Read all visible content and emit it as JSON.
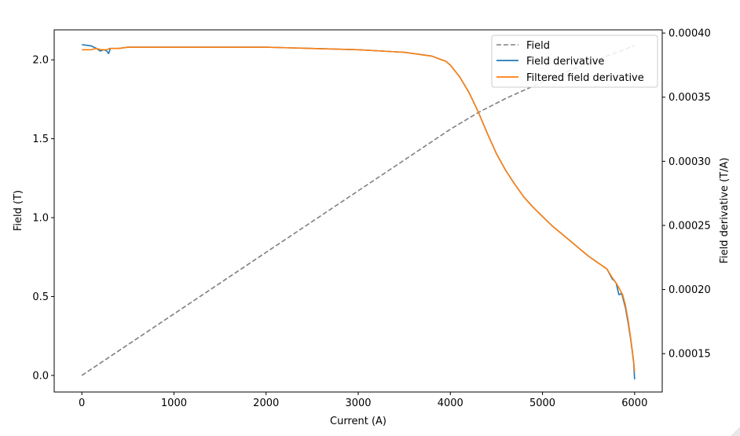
{
  "chart_data": {
    "type": "line",
    "xlabel": "Current (A)",
    "ylabel": "Field (T)",
    "y2label": "Field derivative (T/A)",
    "xlim": [
      -300,
      6300
    ],
    "ylim": [
      -0.105,
      2.19
    ],
    "y2lim": [
      0.0001201,
      0.0004025
    ],
    "xticks": [
      0,
      1000,
      2000,
      3000,
      4000,
      5000,
      6000
    ],
    "xtick_labels": [
      "0",
      "1000",
      "2000",
      "3000",
      "4000",
      "5000",
      "6000"
    ],
    "yticks": [
      0.0,
      0.5,
      1.0,
      1.5,
      2.0
    ],
    "ytick_labels": [
      "0.0",
      "0.5",
      "1.0",
      "1.5",
      "2.0"
    ],
    "y2ticks": [
      0.00015,
      0.0002,
      0.00025,
      0.0003,
      0.00035,
      0.0004
    ],
    "y2tick_labels": [
      "0.00015",
      "0.00020",
      "0.00025",
      "0.00030",
      "0.00035",
      "0.00040"
    ],
    "grid": false,
    "legend_position": "upper-right",
    "series": [
      {
        "name": "Field",
        "axis": "left",
        "color": "#808080",
        "dash": true,
        "x": [
          0,
          500,
          1000,
          1500,
          2000,
          2500,
          3000,
          3500,
          4000,
          4300,
          4600,
          5000,
          5500,
          6000
        ],
        "y": [
          0.0,
          0.195,
          0.39,
          0.585,
          0.78,
          0.975,
          1.17,
          1.365,
          1.56,
          1.665,
          1.755,
          1.86,
          1.98,
          2.09
        ]
      },
      {
        "name": "Field derivative",
        "axis": "right",
        "color": "#1f77b4",
        "dash": false,
        "x": [
          0,
          100,
          160,
          200,
          240,
          270,
          290,
          310,
          400,
          500,
          1000,
          1500,
          2000,
          2500,
          3000,
          3500,
          3800,
          3950,
          4000,
          4100,
          4200,
          4300,
          4400,
          4500,
          4600,
          4700,
          4800,
          4900,
          5000,
          5100,
          5200,
          5300,
          5400,
          5500,
          5600,
          5700,
          5760,
          5780,
          5800,
          5830,
          5860,
          5900,
          5930,
          5960,
          5990,
          6000
        ],
        "y": [
          0.000391,
          0.00039,
          0.000388,
          0.000386,
          0.000387,
          0.000386,
          0.000384,
          0.000388,
          0.000388,
          0.000389,
          0.000389,
          0.000389,
          0.000389,
          0.000388,
          0.000387,
          0.000385,
          0.000382,
          0.000378,
          0.000375,
          0.000366,
          0.000354,
          0.000339,
          0.000322,
          0.000306,
          0.000293,
          0.000282,
          0.000272,
          0.000264,
          0.000257,
          0.00025,
          0.000244,
          0.000238,
          0.000232,
          0.000226,
          0.000221,
          0.000216,
          0.000208,
          0.000207,
          0.000205,
          0.000196,
          0.000197,
          0.000186,
          0.000174,
          0.00016,
          0.000143,
          0.00013
        ]
      },
      {
        "name": "Filtered field derivative",
        "axis": "right",
        "color": "#ff7f0e",
        "dash": false,
        "x": [
          0,
          100,
          160,
          200,
          240,
          270,
          300,
          400,
          500,
          1000,
          1500,
          2000,
          2500,
          3000,
          3500,
          3800,
          3950,
          4000,
          4100,
          4200,
          4300,
          4400,
          4500,
          4600,
          4700,
          4800,
          4900,
          5000,
          5100,
          5200,
          5300,
          5400,
          5500,
          5600,
          5700,
          5760,
          5800,
          5840,
          5870,
          5900,
          5930,
          5960,
          5990,
          6000
        ],
        "y": [
          0.000387,
          0.000387,
          0.000388,
          0.000387,
          0.000387,
          0.000387,
          0.000388,
          0.000388,
          0.000389,
          0.000389,
          0.000389,
          0.000389,
          0.000388,
          0.000387,
          0.000385,
          0.000382,
          0.000378,
          0.000375,
          0.000366,
          0.000354,
          0.000339,
          0.000322,
          0.000306,
          0.000293,
          0.000282,
          0.000272,
          0.000264,
          0.000257,
          0.00025,
          0.000244,
          0.000238,
          0.000232,
          0.000226,
          0.000221,
          0.000216,
          0.000209,
          0.000205,
          0.0002,
          0.000196,
          0.000188,
          0.000176,
          0.000161,
          0.000144,
          0.000136
        ]
      }
    ]
  }
}
